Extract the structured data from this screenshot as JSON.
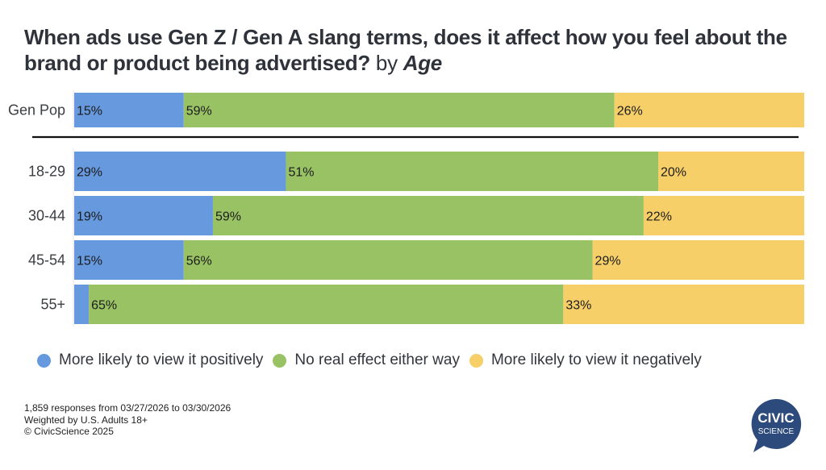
{
  "title": {
    "main": "When ads use Gen Z / Gen A slang terms, does it affect how you feel about the brand or product being advertised?",
    "by": "by",
    "dimension": "Age"
  },
  "chart_data": {
    "type": "bar",
    "orientation": "horizontal",
    "stacked": "100%",
    "title": "When ads use Gen Z / Gen A slang terms, does it affect how you feel about the brand or product being advertised? by Age",
    "xlabel": "",
    "ylabel": "",
    "xlim": [
      0,
      100
    ],
    "grid": false,
    "legend_position": "bottom",
    "categories": [
      "Gen Pop",
      "18-29",
      "30-44",
      "45-54",
      "55+"
    ],
    "series": [
      {
        "name": "More likely to view it positively",
        "color": "#6699de",
        "values": [
          15,
          29,
          19,
          15,
          2
        ],
        "labels": [
          "15%",
          "29%",
          "19%",
          "15%",
          ""
        ]
      },
      {
        "name": "No real effect either way",
        "color": "#99c264",
        "values": [
          59,
          51,
          59,
          56,
          65
        ],
        "labels": [
          "59%",
          "51%",
          "59%",
          "56%",
          "65%"
        ]
      },
      {
        "name": "More likely to view it negatively",
        "color": "#f6cf69",
        "values": [
          26,
          20,
          22,
          29,
          33
        ],
        "labels": [
          "26%",
          "20%",
          "22%",
          "29%",
          "33%"
        ]
      }
    ]
  },
  "legend": [
    {
      "label": "More likely to view it positively",
      "color": "#6699de"
    },
    {
      "label": "No real effect either way",
      "color": "#99c264"
    },
    {
      "label": "More likely to view it negatively",
      "color": "#f6cf69"
    }
  ],
  "footer": {
    "responses": "1,859 responses from 03/27/2026 to 03/30/2026",
    "weighting": "Weighted by U.S. Adults 18+",
    "copyright": "© CivicScience 2025"
  },
  "logo": {
    "line1": "CIVIC",
    "line2": "SCIENCE",
    "color": "#2c4a7c"
  }
}
